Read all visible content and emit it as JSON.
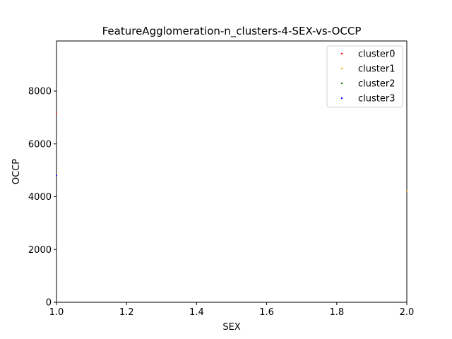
{
  "chart_data": {
    "type": "scatter",
    "title": "FeatureAgglomeration-n_clusters-4-SEX-vs-OCCP",
    "xlabel": "SEX",
    "ylabel": "OCCP",
    "xlim": [
      1.0,
      2.0
    ],
    "ylim": [
      0,
      9900
    ],
    "xticks": [
      1.0,
      1.2,
      1.4,
      1.6,
      1.8,
      2.0
    ],
    "xtick_labels": [
      "1.0",
      "1.2",
      "1.4",
      "1.6",
      "1.8",
      "2.0"
    ],
    "yticks": [
      0,
      2000,
      4000,
      6000,
      8000
    ],
    "ytick_labels": [
      "0",
      "2000",
      "4000",
      "6000",
      "8000"
    ],
    "grid": false,
    "legend_position": "top-right",
    "series": [
      {
        "name": "cluster0",
        "color": "#ff0000",
        "points": [
          [
            1.0,
            7150
          ]
        ]
      },
      {
        "name": "cluster1",
        "color": "#ffa500",
        "points": [
          [
            2.0,
            4220
          ]
        ]
      },
      {
        "name": "cluster2",
        "color": "#008000",
        "points": []
      },
      {
        "name": "cluster3",
        "color": "#0000ff",
        "points": [
          [
            1.0,
            4800
          ]
        ]
      }
    ]
  }
}
